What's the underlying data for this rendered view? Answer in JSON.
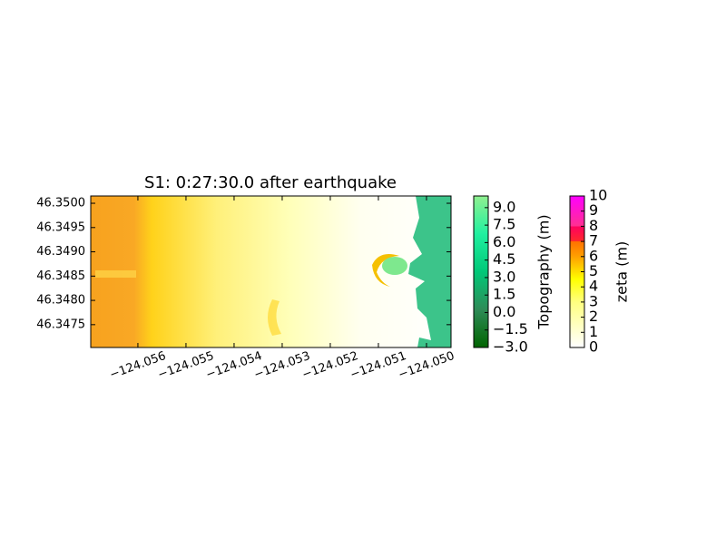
{
  "chart_data": {
    "type": "heatmap",
    "title": "S1: 0:27:30.0 after earthquake",
    "xlim": [
      -124.05698,
      -124.04949
    ],
    "ylim": [
      46.34703,
      46.35015
    ],
    "xticks": [
      {
        "value": -124.056,
        "label": "−124.056"
      },
      {
        "value": -124.055,
        "label": "−124.055"
      },
      {
        "value": -124.054,
        "label": "−124.054"
      },
      {
        "value": -124.053,
        "label": "−124.053"
      },
      {
        "value": -124.052,
        "label": "−124.052"
      },
      {
        "value": -124.051,
        "label": "−124.051"
      },
      {
        "value": -124.05,
        "label": "−124.050"
      }
    ],
    "yticks": [
      {
        "value": 46.35,
        "label": "46.3500"
      },
      46.3495,
      {
        "value": 46.349,
        "label": "46.3490"
      },
      46.3485,
      {
        "value": 46.348,
        "label": "46.3480"
      },
      46.3475
    ],
    "colorbars": [
      {
        "label": "Topography (m)",
        "lim": [
          -3,
          10
        ],
        "ticks": [
          {
            "value": 9,
            "label": "9.0"
          },
          {
            "value": 7.5,
            "label": "7.5"
          },
          {
            "value": 6,
            "label": "6.0"
          },
          {
            "value": 4.5,
            "label": "4.5"
          },
          {
            "value": 3,
            "label": "3.0"
          },
          {
            "value": 1.5,
            "label": "1.5"
          },
          {
            "value": 0,
            "label": "0.0"
          },
          {
            "value": -1.5,
            "label": "−1.5"
          },
          {
            "value": -3,
            "label": "−3.0"
          }
        ]
      },
      {
        "label": "zeta (m)",
        "lim": [
          0,
          10
        ],
        "ticks": [
          10,
          9,
          8,
          7,
          6,
          5,
          4,
          3,
          2,
          1,
          0
        ]
      }
    ]
  }
}
